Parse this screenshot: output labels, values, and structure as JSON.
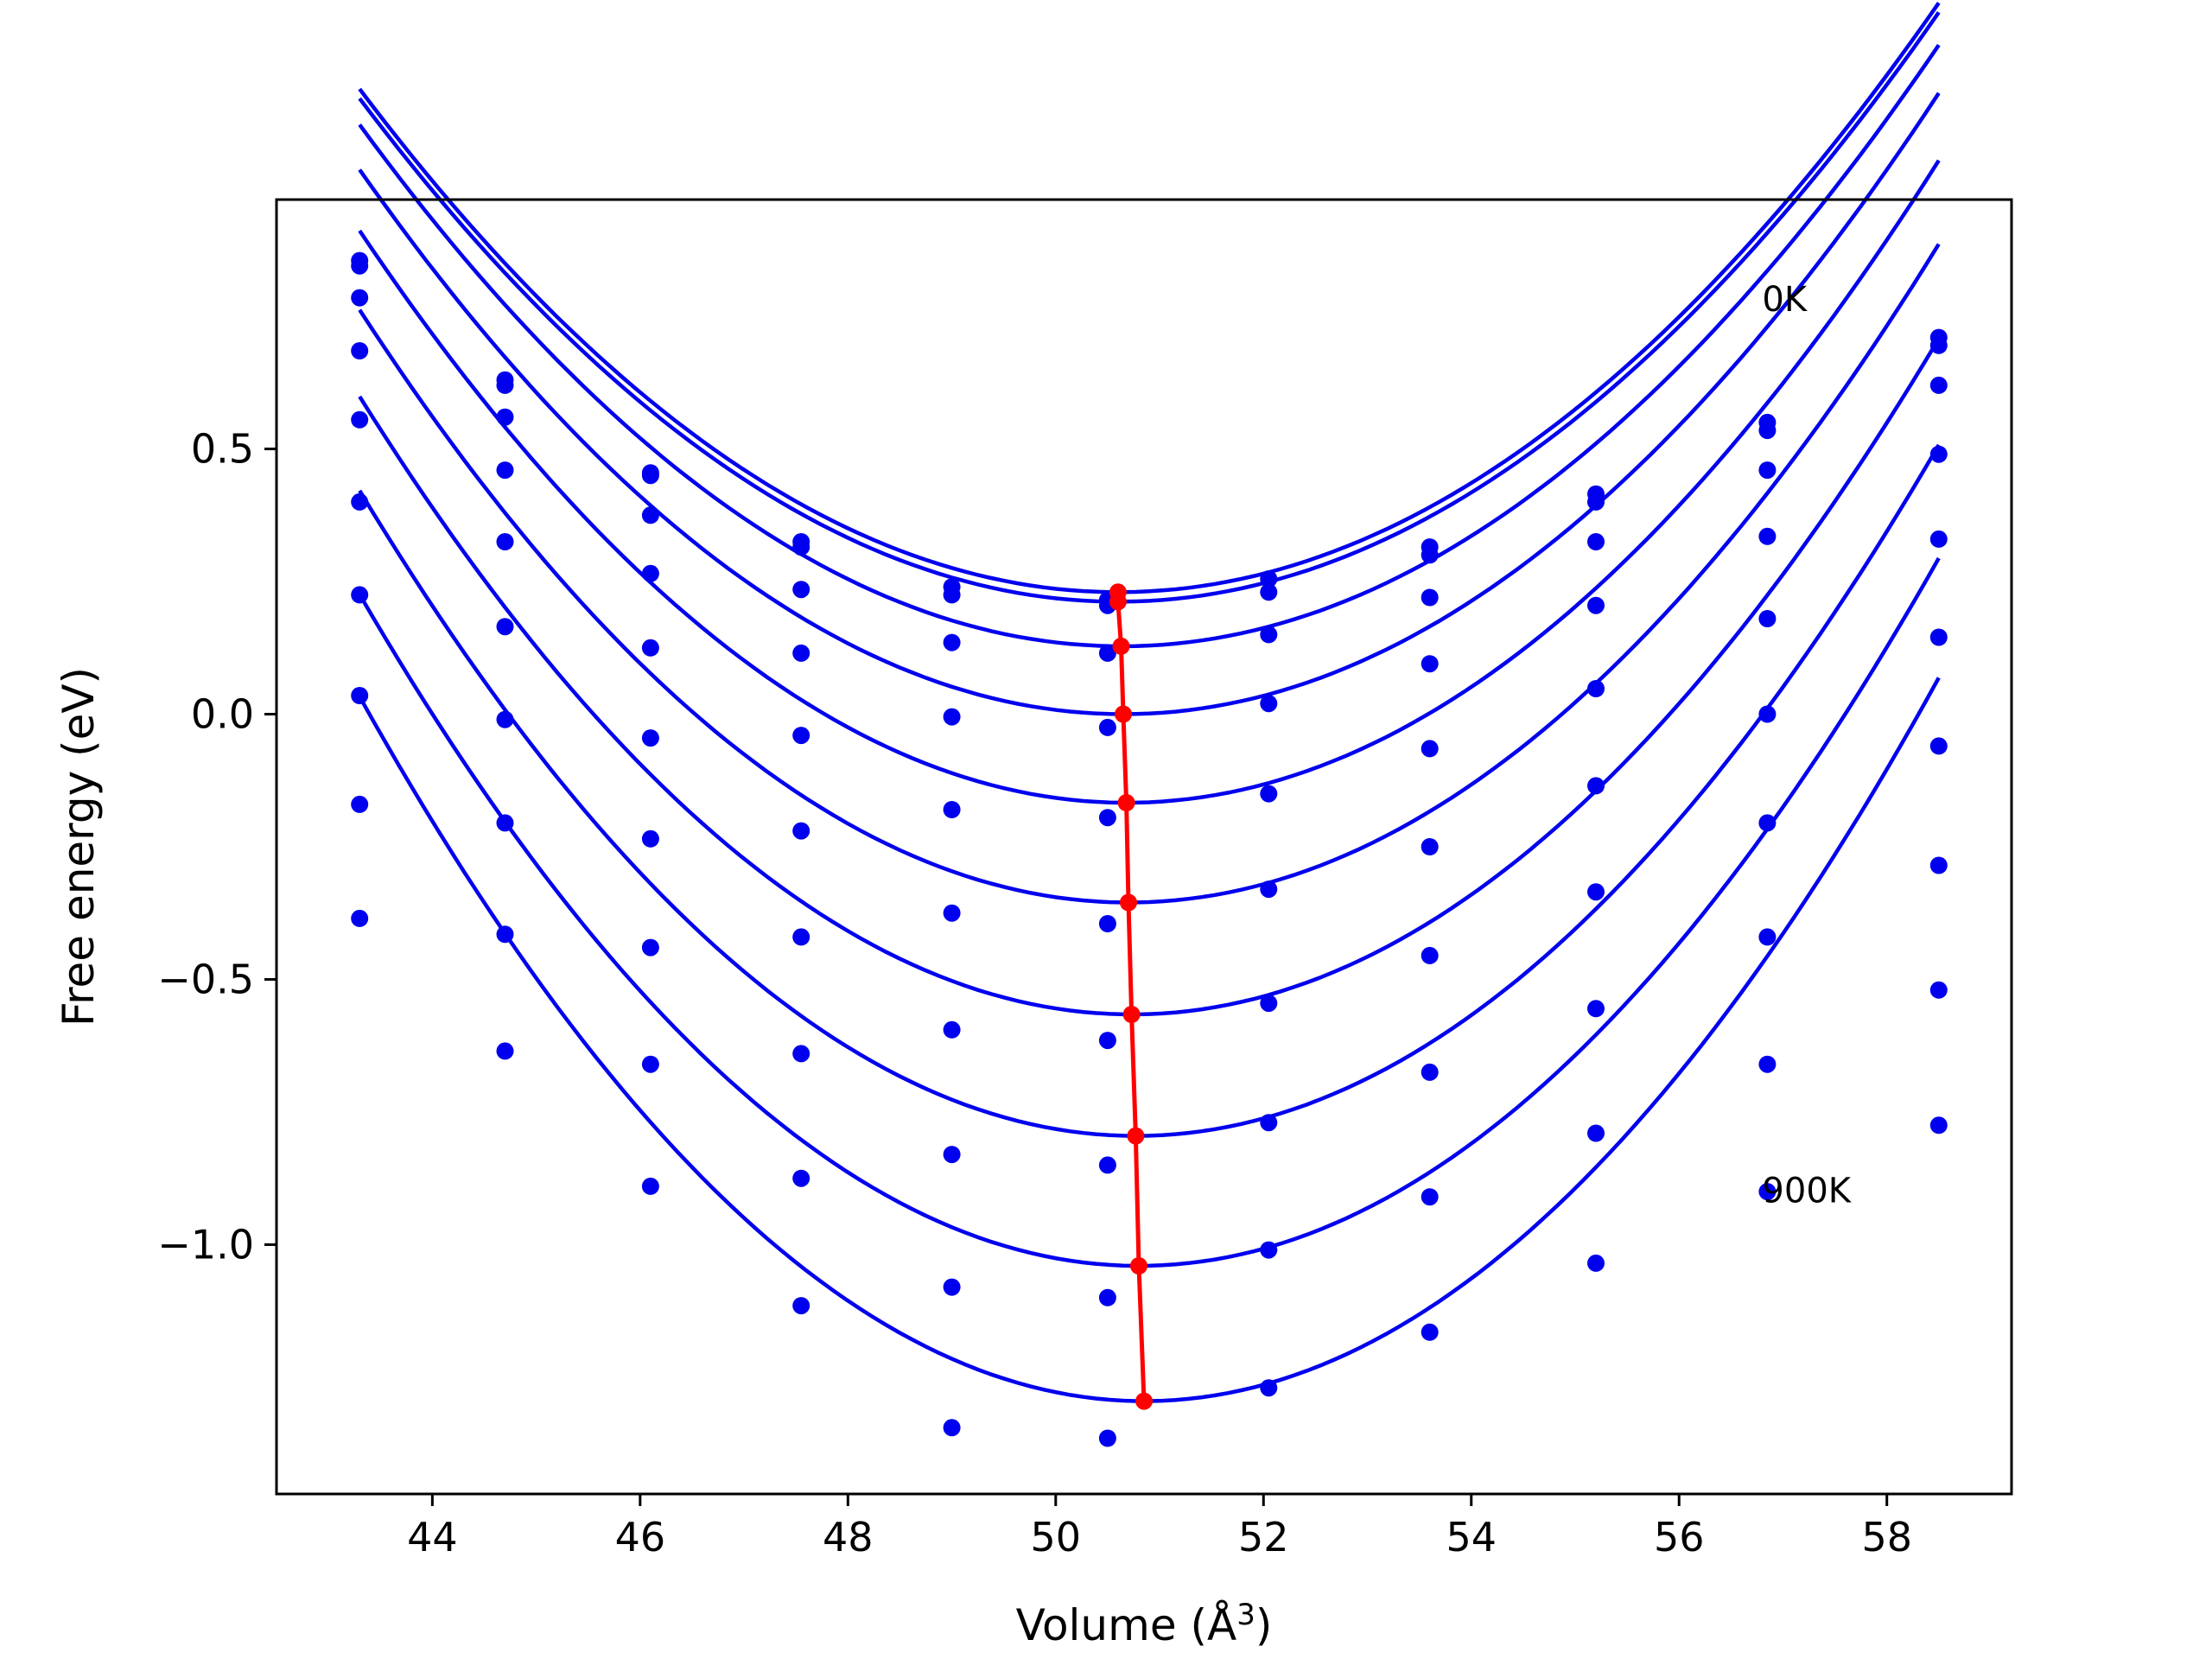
{
  "chart_data": {
    "type": "scatter",
    "xlabel": "Volume (Å",
    "xlabel_sup": "3",
    "xlabel_close": ")",
    "ylabel": "Free energy (eV)",
    "xlim": [
      42.5,
      59.2
    ],
    "ylim": [
      -1.47,
      0.97
    ],
    "xticks": [
      44,
      46,
      48,
      50,
      52,
      54,
      56,
      58
    ],
    "xtick_labels": [
      "44",
      "46",
      "48",
      "50",
      "52",
      "54",
      "56",
      "58"
    ],
    "yticks": [
      0.5,
      0.0,
      -0.5,
      -1.0
    ],
    "ytick_labels": [
      "0.5",
      "0.0",
      "−0.5",
      "−1.0"
    ],
    "grid": false,
    "annotations": [
      {
        "text": "0K",
        "x": 56.8,
        "y": 0.76
      },
      {
        "text": "900K",
        "x": 56.8,
        "y": -0.92
      }
    ],
    "volumes": [
      43.3,
      44.7,
      46.1,
      47.55,
      49.0,
      50.5,
      52.05,
      53.6,
      55.2,
      56.85,
      58.5
    ],
    "fit_domain": [
      43.3,
      58.5
    ],
    "series": [
      {
        "points": [
          0.855,
          0.63,
          0.455,
          0.325,
          0.24,
          0.215,
          0.255,
          0.315,
          0.415,
          0.55,
          0.71
        ],
        "fit": {
          "a": 0.0178,
          "v0": 50.6,
          "e0": 0.23
        },
        "minimum": [
          50.6,
          0.23
        ]
      },
      {
        "points": [
          0.845,
          0.62,
          0.45,
          0.315,
          0.225,
          0.205,
          0.23,
          0.3,
          0.4,
          0.535,
          0.695
        ],
        "fit": {
          "a": 0.0178,
          "v0": 50.6,
          "e0": 0.212
        },
        "minimum": [
          50.6,
          0.212
        ]
      },
      {
        "points": [
          0.785,
          0.56,
          0.375,
          0.235,
          0.135,
          0.115,
          0.15,
          0.22,
          0.325,
          0.46,
          0.62
        ],
        "fit": {
          "a": 0.0183,
          "v0": 50.63,
          "e0": 0.128
        },
        "minimum": [
          50.63,
          0.128
        ]
      },
      {
        "points": [
          0.685,
          0.46,
          0.265,
          0.115,
          -0.005,
          -0.025,
          0.02,
          0.095,
          0.205,
          0.335,
          0.49
        ],
        "fit": {
          "a": 0.019,
          "v0": 50.65,
          "e0": 0.0
        },
        "minimum": [
          50.65,
          0.0
        ]
      },
      {
        "points": [
          0.555,
          0.325,
          0.125,
          -0.04,
          -0.18,
          -0.195,
          -0.15,
          -0.065,
          0.048,
          0.18,
          0.33
        ],
        "fit": {
          "a": 0.0198,
          "v0": 50.68,
          "e0": -0.167
        },
        "minimum": [
          50.68,
          -0.167
        ]
      },
      {
        "points": [
          0.4,
          0.165,
          -0.045,
          -0.22,
          -0.375,
          -0.395,
          -0.33,
          -0.25,
          -0.135,
          0.0,
          0.145
        ],
        "fit": {
          "a": 0.0204,
          "v0": 50.7,
          "e0": -0.355
        },
        "minimum": [
          50.7,
          -0.355
        ]
      },
      {
        "points": [
          0.225,
          -0.01,
          -0.235,
          -0.42,
          -0.595,
          -0.615,
          -0.545,
          -0.455,
          -0.335,
          -0.205,
          -0.06
        ],
        "fit": {
          "a": 0.0211,
          "v0": 50.73,
          "e0": -0.566
        },
        "minimum": [
          50.73,
          -0.566
        ]
      },
      {
        "points": [
          0.035,
          -0.205,
          -0.44,
          -0.64,
          -0.83,
          -0.85,
          -0.77,
          -0.675,
          -0.555,
          -0.42,
          -0.285
        ],
        "fit": {
          "a": 0.0218,
          "v0": 50.77,
          "e0": -0.795
        },
        "minimum": [
          50.77,
          -0.795
        ]
      },
      {
        "points": [
          -0.17,
          -0.415,
          -0.66,
          -0.875,
          -1.08,
          -1.1,
          -1.01,
          -0.91,
          -0.79,
          -0.66,
          -0.52
        ],
        "fit": {
          "a": 0.0225,
          "v0": 50.8,
          "e0": -1.04
        },
        "minimum": [
          50.8,
          -1.04
        ]
      },
      {
        "points": [
          -0.385,
          -0.635,
          -0.89,
          -1.115,
          -1.345,
          -1.365,
          -1.27,
          -1.165,
          -1.035,
          -0.9,
          -0.775
        ],
        "fit": {
          "a": 0.0233,
          "v0": 50.85,
          "e0": -1.295
        },
        "minimum": [
          50.85,
          -1.295
        ]
      }
    ],
    "colors": {
      "series": "#0000ee",
      "minima": "#ff0000",
      "axes": "#000000"
    }
  }
}
